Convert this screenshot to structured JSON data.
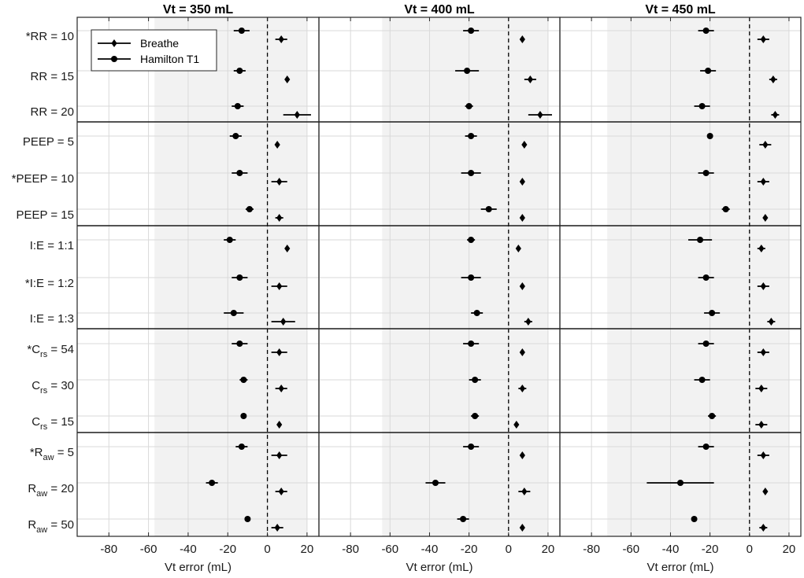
{
  "chart_data": {
    "type": "scatter",
    "subtype": "forest-plot-with-error-bars",
    "row_labels": [
      {
        "pre": "*RR = 10"
      },
      {
        "pre": "RR = 15"
      },
      {
        "pre": "RR = 20"
      },
      {
        "pre": "PEEP = 5"
      },
      {
        "pre": "*PEEP = 10"
      },
      {
        "pre": "PEEP = 15"
      },
      {
        "pre": "I:E = 1:1"
      },
      {
        "pre": "*I:E = 1:2"
      },
      {
        "pre": "I:E = 1:3"
      },
      {
        "pre": "*C",
        "sub": "rs",
        "post": " = 54"
      },
      {
        "pre": "C",
        "sub": "rs",
        "post": " = 30"
      },
      {
        "pre": "C",
        "sub": "rs",
        "post": " = 15"
      },
      {
        "pre": "*R",
        "sub": "aw",
        "post": " = 5"
      },
      {
        "pre": "R",
        "sub": "aw",
        "post": " = 20"
      },
      {
        "pre": "R",
        "sub": "aw",
        "post": " = 50"
      }
    ],
    "group_sizes": [
      3,
      3,
      3,
      3,
      3
    ],
    "xlim": [
      -96,
      26
    ],
    "xticks": [
      -80,
      -60,
      -40,
      -20,
      0,
      20
    ],
    "xlabel": "Vt error (mL)",
    "reference_line": 0,
    "legend": {
      "position": "top-left",
      "entries": [
        "Breathe",
        "Hamilton T1"
      ]
    },
    "series_markers": {
      "Breathe": "diamond",
      "Hamilton T1": "circle"
    },
    "panels": [
      {
        "title": "Vt = 350 mL",
        "shade_range": [
          -57,
          20
        ],
        "breathe": [
          [
            7,
            3
          ],
          [
            10,
            1
          ],
          [
            15,
            7
          ],
          [
            5,
            1
          ],
          [
            6,
            4
          ],
          [
            6,
            2
          ],
          [
            10,
            1
          ],
          [
            6,
            4
          ],
          [
            8,
            6
          ],
          [
            6,
            4
          ],
          [
            7,
            3
          ],
          [
            6,
            1
          ],
          [
            6,
            4
          ],
          [
            7,
            3
          ],
          [
            5,
            3
          ]
        ],
        "hamilton": [
          [
            -13,
            4
          ],
          [
            -14,
            3
          ],
          [
            -15,
            3
          ],
          [
            -16,
            3
          ],
          [
            -14,
            4
          ],
          [
            -9,
            2
          ],
          [
            -19,
            3
          ],
          [
            -14,
            4
          ],
          [
            -17,
            5
          ],
          [
            -14,
            4
          ],
          [
            -12,
            2
          ],
          [
            -12,
            1
          ],
          [
            -13,
            3
          ],
          [
            -28,
            3
          ],
          [
            -10,
            1
          ]
        ]
      },
      {
        "title": "Vt = 400 mL",
        "shade_range": [
          -64,
          20
        ],
        "breathe": [
          [
            7,
            1
          ],
          [
            11,
            3
          ],
          [
            16,
            6
          ],
          [
            8,
            1
          ],
          [
            7,
            1
          ],
          [
            7,
            1
          ],
          [
            5,
            1
          ],
          [
            7,
            1
          ],
          [
            10,
            2
          ],
          [
            7,
            1
          ],
          [
            7,
            2
          ],
          [
            4,
            1
          ],
          [
            7,
            1
          ],
          [
            8,
            3
          ],
          [
            7,
            1
          ]
        ],
        "hamilton": [
          [
            -19,
            4
          ],
          [
            -21,
            6
          ],
          [
            -20,
            2
          ],
          [
            -19,
            3
          ],
          [
            -19,
            5
          ],
          [
            -10,
            4
          ],
          [
            -19,
            2
          ],
          [
            -19,
            5
          ],
          [
            -16,
            3
          ],
          [
            -19,
            4
          ],
          [
            -17,
            3
          ],
          [
            -17,
            2
          ],
          [
            -19,
            4
          ],
          [
            -37,
            5
          ],
          [
            -23,
            3
          ]
        ]
      },
      {
        "title": "Vt = 450 mL",
        "shade_range": [
          -72,
          20
        ],
        "breathe": [
          [
            7,
            3
          ],
          [
            12,
            2
          ],
          [
            13,
            2
          ],
          [
            8,
            3
          ],
          [
            7,
            3
          ],
          [
            8,
            1
          ],
          [
            6,
            2
          ],
          [
            7,
            3
          ],
          [
            11,
            2
          ],
          [
            7,
            3
          ],
          [
            6,
            3
          ],
          [
            6,
            3
          ],
          [
            7,
            3
          ],
          [
            8,
            1
          ],
          [
            7,
            2
          ]
        ],
        "hamilton": [
          [
            -22,
            4
          ],
          [
            -21,
            4
          ],
          [
            -24,
            4
          ],
          [
            -20,
            1
          ],
          [
            -22,
            4
          ],
          [
            -12,
            2
          ],
          [
            -25,
            6
          ],
          [
            -22,
            4
          ],
          [
            -19,
            4
          ],
          [
            -22,
            4
          ],
          [
            -24,
            4
          ],
          [
            -19,
            2
          ],
          [
            -22,
            4
          ],
          [
            -35,
            17
          ],
          [
            -28,
            1
          ]
        ]
      }
    ]
  }
}
